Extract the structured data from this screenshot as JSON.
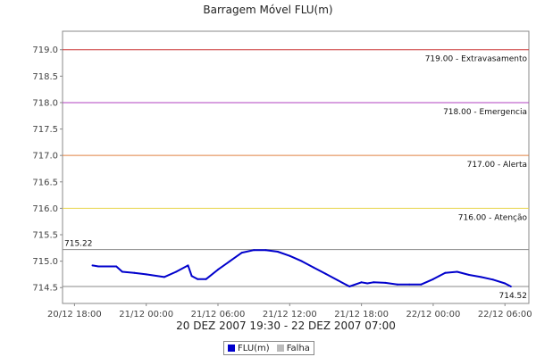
{
  "chart_data": {
    "type": "line",
    "title": "Barragem Móvel FLU(m)",
    "xlabel": "20 DEZ 2007 19:30 - 22 DEZ 2007 07:00",
    "ylabel": "",
    "ylim": [
      714.2,
      719.35
    ],
    "yticks": [
      "714.5",
      "715.0",
      "715.5",
      "716.0",
      "716.5",
      "717.0",
      "717.5",
      "718.0",
      "718.5",
      "719.0"
    ],
    "ytick_values": [
      714.5,
      715.0,
      715.5,
      716.0,
      716.5,
      717.0,
      717.5,
      718.0,
      718.5,
      719.0
    ],
    "xlim_hours": [
      -1.0,
      38.0
    ],
    "xticks": [
      "20/12 18:00",
      "21/12 00:00",
      "21/12 06:00",
      "21/12 12:00",
      "21/12 18:00",
      "22/12 00:00",
      "22/12 06:00"
    ],
    "xtick_hours": [
      0,
      6,
      12,
      18,
      24,
      30,
      36
    ],
    "grid": false,
    "legend_position": "bottom",
    "reference_lines": [
      {
        "value": 719.0,
        "label": "719.00 - Extravasamento",
        "color": "#cc3333"
      },
      {
        "value": 718.0,
        "label": "718.00 - Emergencia",
        "color": "#b040c0"
      },
      {
        "value": 717.0,
        "label": "717.00 - Alerta",
        "color": "#e08040"
      },
      {
        "value": 716.0,
        "label": "716.00 - Atenção",
        "color": "#e8d44a"
      }
    ],
    "max_line": {
      "value": 715.22,
      "label": "715.22",
      "color": "#888888"
    },
    "min_line": {
      "value": 714.52,
      "label": "714.52",
      "color": "#888888"
    },
    "series": [
      {
        "name": "FLU(m)",
        "color": "#0000cc",
        "x_hours": [
          1.5,
          2.0,
          3.5,
          4.0,
          5.0,
          6.0,
          7.5,
          8.5,
          9.5,
          9.8,
          10.3,
          11.0,
          12.0,
          13.0,
          14.0,
          15.0,
          16.0,
          17.0,
          18.0,
          19.0,
          20.0,
          21.0,
          22.0,
          23.0,
          24.0,
          24.5,
          25.0,
          26.0,
          27.0,
          28.0,
          29.0,
          30.0,
          30.5,
          31.0,
          32.0,
          33.0,
          34.0,
          35.0,
          36.0,
          36.5
        ],
        "values": [
          714.92,
          714.9,
          714.9,
          714.8,
          714.78,
          714.75,
          714.7,
          714.8,
          714.92,
          714.72,
          714.66,
          714.66,
          714.84,
          715.0,
          715.16,
          715.21,
          715.21,
          715.18,
          715.1,
          715.0,
          714.88,
          714.76,
          714.64,
          714.52,
          714.6,
          714.58,
          714.6,
          714.59,
          714.56,
          714.56,
          714.56,
          714.66,
          714.72,
          714.78,
          714.8,
          714.74,
          714.7,
          714.65,
          714.58,
          714.52
        ]
      },
      {
        "name": "Falha",
        "color": "#bbbbbb",
        "x_hours": [],
        "values": []
      }
    ]
  }
}
